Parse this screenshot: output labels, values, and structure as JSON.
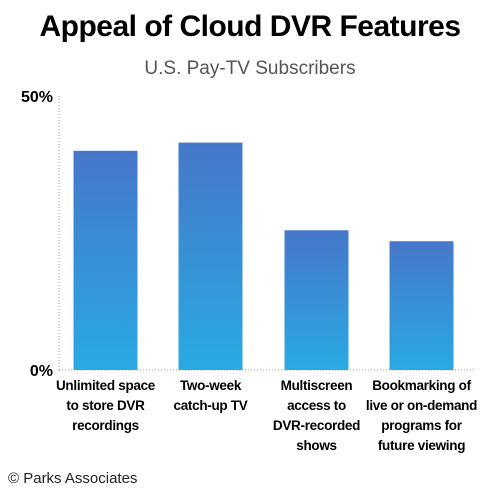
{
  "chart_data": {
    "type": "bar",
    "title": "Appeal of Cloud DVR Features",
    "subtitle": "U.S. Pay-TV Subscribers",
    "xlabel": "",
    "ylabel": "",
    "ylim": [
      0,
      50
    ],
    "y_ticks": [
      "0%",
      "50%"
    ],
    "grid": false,
    "categories": [
      "Unlimited space to store DVR recordings",
      "Two-week catch-up TV",
      "Multiscreen access to DVR-recorded shows",
      "Bookmarking of live or on-demand programs for future viewing"
    ],
    "category_lines": [
      [
        "Unlimited space",
        "to store DVR",
        "recordings"
      ],
      [
        "Two-week",
        "catch-up TV"
      ],
      [
        "Multiscreen",
        "access to",
        "DVR-recorded",
        "shows"
      ],
      [
        "Bookmarking of",
        "live or on-demand",
        "programs for",
        "future viewing"
      ]
    ],
    "values": [
      40,
      41.5,
      25.5,
      23.5
    ],
    "bar_color_top": "#4677c9",
    "bar_color_bottom": "#29aae2"
  },
  "source": "© Parks Associates"
}
